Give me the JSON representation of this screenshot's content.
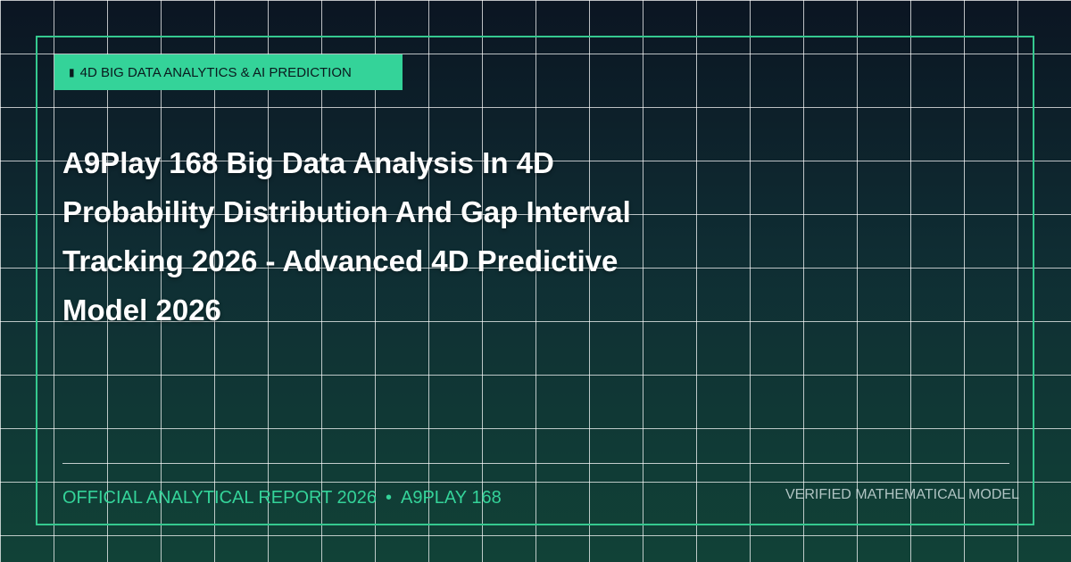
{
  "badge": {
    "icon": "chart-icon",
    "icon_glyph": "▮",
    "label": "4D BIG DATA ANALYTICS & AI PREDICTION"
  },
  "title": "A9Play 168 Big Data Analysis In 4D Probability Distribution And Gap Interval Tracking 2026 - Advanced 4D Predictive Model 2026",
  "footer": {
    "report_label": "OFFICIAL ANALYTICAL REPORT 2026",
    "separator": "•",
    "brand": "A9PLAY 168",
    "verified_label": "VERIFIED MATHEMATICAL MODEL"
  },
  "colors": {
    "accent": "#34d399",
    "background_top": "#0b1522",
    "background_bottom": "#114237",
    "title_text": "#ffffff",
    "grid_line": "#ffffff"
  }
}
